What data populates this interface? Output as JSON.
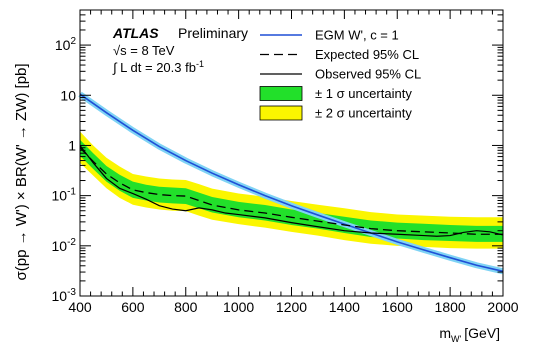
{
  "chart_data": {
    "type": "line",
    "xlabel_main": "m",
    "xlabel_sub": "W'",
    "xlabel_unit": "[GeV]",
    "ylabel": "σ(pp → W') × BR(W' → ZW)  [pb]",
    "xlim": [
      400,
      2000
    ],
    "ylim": [
      0.001,
      500
    ],
    "y_scale": "log",
    "x_ticks": [
      400,
      600,
      800,
      1000,
      1200,
      1400,
      1600,
      1800,
      2000
    ],
    "y_ticks": [
      {
        "value": 0.001,
        "base": "10",
        "exp": "-3"
      },
      {
        "value": 0.01,
        "base": "10",
        "exp": "-2"
      },
      {
        "value": 0.1,
        "base": "10",
        "exp": "-1"
      },
      {
        "value": 1,
        "base": "1",
        "exp": ""
      },
      {
        "value": 10,
        "base": "10",
        "exp": ""
      },
      {
        "value": 100,
        "base": "10",
        "exp": "2"
      }
    ],
    "annotations": {
      "atlas": "ATLAS",
      "preliminary": "Preliminary",
      "energy": "√s = 8 TeV",
      "lumi_prefix": "∫ L dt = 20.3 fb",
      "lumi_exp": "-1"
    },
    "legend": {
      "placement": "top-right",
      "entries": [
        {
          "label": "EGM W', c = 1",
          "style": "theory"
        },
        {
          "label": "Expected 95% CL",
          "style": "dashed"
        },
        {
          "label": "Observed 95% CL",
          "style": "solid"
        },
        {
          "label": "± 1 σ uncertainty",
          "style": "band1"
        },
        {
          "label": "± 2 σ uncertainty",
          "style": "band2"
        }
      ]
    },
    "colors": {
      "theory_line": "#1f4fd6",
      "theory_band": "#7fd3f5",
      "band1": "#22e02a",
      "band2": "#fbf600"
    },
    "series": [
      {
        "name": "EGM W', c = 1",
        "x": [
          400,
          500,
          600,
          700,
          800,
          900,
          1000,
          1100,
          1200,
          1300,
          1400,
          1500,
          1600,
          1700,
          1800,
          1900,
          2000
        ],
        "y": [
          10.5,
          4.5,
          2.0,
          0.95,
          0.5,
          0.28,
          0.165,
          0.1,
          0.063,
          0.041,
          0.027,
          0.018,
          0.012,
          0.0083,
          0.0058,
          0.0041,
          0.0031
        ]
      },
      {
        "name": "Expected 95% CL",
        "x": [
          400,
          450,
          500,
          550,
          600,
          650,
          700,
          750,
          800,
          850,
          900,
          1000,
          1100,
          1200,
          1300,
          1400,
          1500,
          1600,
          1700,
          1800,
          1900,
          2000
        ],
        "y": [
          0.9,
          0.48,
          0.27,
          0.18,
          0.13,
          0.115,
          0.105,
          0.1,
          0.098,
          0.08,
          0.065,
          0.052,
          0.045,
          0.037,
          0.031,
          0.026,
          0.022,
          0.02,
          0.019,
          0.018,
          0.017,
          0.017
        ]
      },
      {
        "name": "Observed 95% CL",
        "x": [
          400,
          450,
          500,
          550,
          600,
          650,
          700,
          750,
          800,
          850,
          900,
          950,
          1000,
          1100,
          1200,
          1300,
          1400,
          1500,
          1600,
          1700,
          1750,
          1800,
          1850,
          1900,
          1950,
          2000
        ],
        "y": [
          1.0,
          0.45,
          0.22,
          0.14,
          0.11,
          0.085,
          0.063,
          0.054,
          0.05,
          0.057,
          0.052,
          0.045,
          0.042,
          0.036,
          0.029,
          0.024,
          0.02,
          0.018,
          0.017,
          0.016,
          0.0155,
          0.016,
          0.0185,
          0.02,
          0.019,
          0.0165
        ]
      }
    ],
    "band1": {
      "x": [
        400,
        450,
        500,
        550,
        600,
        650,
        700,
        750,
        800,
        850,
        900,
        1000,
        1100,
        1200,
        1300,
        1400,
        1500,
        1600,
        1700,
        1800,
        1900,
        2000
      ],
      "lo": [
        0.62,
        0.34,
        0.19,
        0.125,
        0.09,
        0.08,
        0.073,
        0.07,
        0.068,
        0.056,
        0.046,
        0.037,
        0.032,
        0.026,
        0.022,
        0.018,
        0.015,
        0.014,
        0.013,
        0.0125,
        0.012,
        0.012
      ],
      "hi": [
        1.3,
        0.7,
        0.39,
        0.26,
        0.19,
        0.165,
        0.15,
        0.145,
        0.14,
        0.115,
        0.094,
        0.075,
        0.065,
        0.053,
        0.045,
        0.038,
        0.032,
        0.029,
        0.0275,
        0.026,
        0.025,
        0.025
      ]
    },
    "band2": {
      "x": [
        400,
        450,
        500,
        550,
        600,
        650,
        700,
        750,
        800,
        850,
        900,
        1000,
        1100,
        1200,
        1300,
        1400,
        1500,
        1600,
        1700,
        1800,
        1900,
        2000
      ],
      "lo": [
        0.45,
        0.25,
        0.14,
        0.09,
        0.066,
        0.058,
        0.053,
        0.05,
        0.049,
        0.04,
        0.033,
        0.027,
        0.023,
        0.019,
        0.016,
        0.013,
        0.011,
        0.01,
        0.0095,
        0.009,
        0.0088,
        0.0088
      ],
      "hi": [
        1.9,
        1.0,
        0.57,
        0.38,
        0.27,
        0.24,
        0.22,
        0.21,
        0.205,
        0.17,
        0.138,
        0.11,
        0.095,
        0.078,
        0.066,
        0.056,
        0.047,
        0.042,
        0.04,
        0.038,
        0.037,
        0.037
      ]
    }
  }
}
